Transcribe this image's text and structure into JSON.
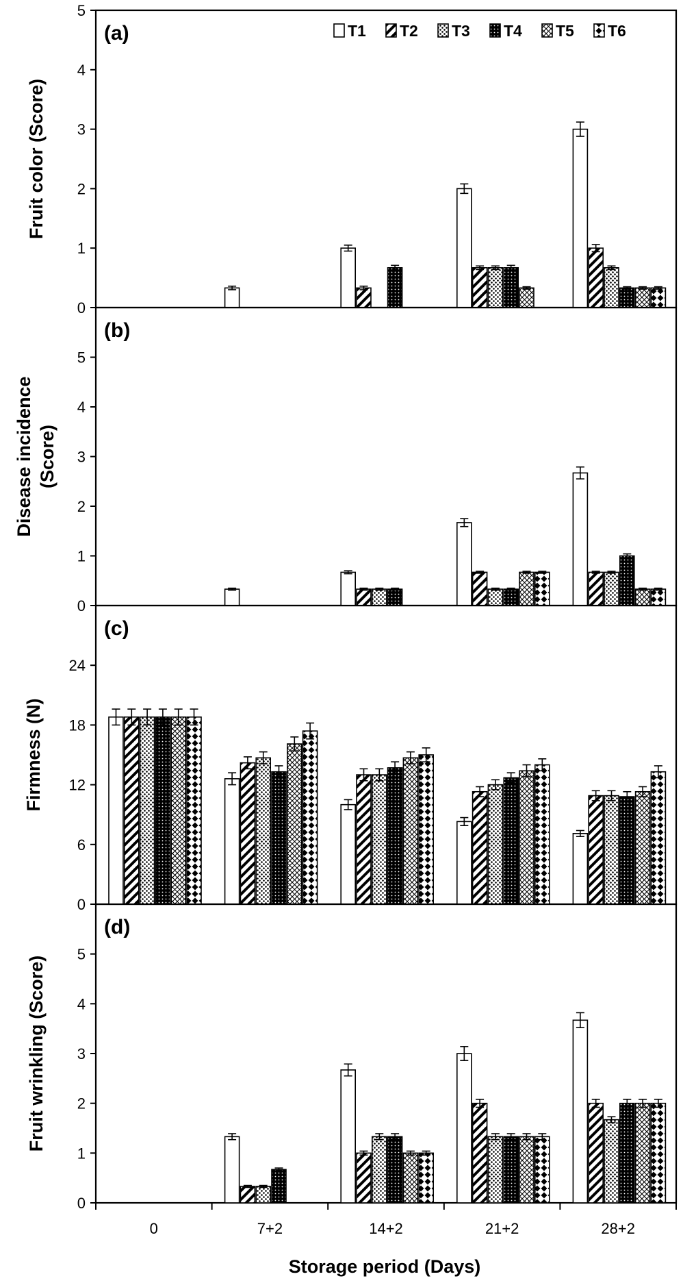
{
  "chart_data": [
    {
      "type": "bar",
      "panel_label": "(a)",
      "ylabel": "Fruit  color (Score)",
      "ylim": [
        0,
        5
      ],
      "yticks": [
        "0",
        "1",
        "2",
        "3",
        "4",
        "5"
      ],
      "categories": [
        "0",
        "7+2",
        "14+2",
        "21+2",
        "28+2"
      ],
      "legend": [
        "T1",
        "T2",
        "T3",
        "T4",
        "T5",
        "T6"
      ],
      "series": [
        {
          "name": "T1",
          "values": [
            0,
            0.33,
            1.0,
            2.0,
            3.0
          ],
          "errors": [
            0,
            0.03,
            0.05,
            0.08,
            0.12
          ]
        },
        {
          "name": "T2",
          "values": [
            0,
            0,
            0.33,
            0.67,
            1.0
          ],
          "errors": [
            0,
            0,
            0.03,
            0.03,
            0.06
          ]
        },
        {
          "name": "T3",
          "values": [
            0,
            0,
            0,
            0.67,
            0.67
          ],
          "errors": [
            0,
            0,
            0,
            0.03,
            0.03
          ]
        },
        {
          "name": "T4",
          "values": [
            0,
            0,
            0.67,
            0.67,
            0.33
          ],
          "errors": [
            0,
            0,
            0.04,
            0.04,
            0.02
          ]
        },
        {
          "name": "T5",
          "values": [
            0,
            0,
            0,
            0.33,
            0.33
          ],
          "errors": [
            0,
            0,
            0,
            0.02,
            0.02
          ]
        },
        {
          "name": "T6",
          "values": [
            0,
            0,
            0,
            0,
            0.33
          ],
          "errors": [
            0,
            0,
            0,
            0,
            0.02
          ]
        }
      ]
    },
    {
      "type": "bar",
      "panel_label": "(b)",
      "ylabel": "Disease incidence (Score)",
      "ylim": [
        0,
        6
      ],
      "yticks": [
        "0",
        "1",
        "2",
        "3",
        "4",
        "5"
      ],
      "categories": [
        "0",
        "7+2",
        "14+2",
        "21+2",
        "28+2"
      ],
      "series": [
        {
          "name": "T1",
          "values": [
            0,
            0.33,
            0.67,
            1.67,
            2.67
          ],
          "errors": [
            0,
            0.02,
            0.03,
            0.08,
            0.12
          ]
        },
        {
          "name": "T2",
          "values": [
            0,
            0,
            0.33,
            0.67,
            0.67
          ],
          "errors": [
            0,
            0,
            0.02,
            0.02,
            0.02
          ]
        },
        {
          "name": "T3",
          "values": [
            0,
            0,
            0.33,
            0.33,
            0.67
          ],
          "errors": [
            0,
            0,
            0.02,
            0.02,
            0.02
          ]
        },
        {
          "name": "T4",
          "values": [
            0,
            0,
            0.33,
            0.33,
            1.0
          ],
          "errors": [
            0,
            0,
            0.02,
            0.02,
            0.04
          ]
        },
        {
          "name": "T5",
          "values": [
            0,
            0,
            0,
            0.67,
            0.33
          ],
          "errors": [
            0,
            0,
            0,
            0.02,
            0.02
          ]
        },
        {
          "name": "T6",
          "values": [
            0,
            0,
            0,
            0.67,
            0.33
          ],
          "errors": [
            0,
            0,
            0,
            0.02,
            0.02
          ]
        }
      ]
    },
    {
      "type": "bar",
      "panel_label": "(c)",
      "ylabel": "Firmness (N)",
      "ylim": [
        0,
        30
      ],
      "yticks": [
        "0",
        "6",
        "12",
        "18",
        "24"
      ],
      "categories": [
        "0",
        "7+2",
        "14+2",
        "21+2",
        "28+2"
      ],
      "series": [
        {
          "name": "T1",
          "values": [
            18.8,
            12.6,
            10.0,
            8.3,
            7.1
          ],
          "errors": [
            0.8,
            0.6,
            0.5,
            0.4,
            0.3
          ]
        },
        {
          "name": "T2",
          "values": [
            18.8,
            14.2,
            13.0,
            11.3,
            10.9
          ],
          "errors": [
            0.8,
            0.6,
            0.6,
            0.5,
            0.5
          ]
        },
        {
          "name": "T3",
          "values": [
            18.8,
            14.7,
            13.0,
            12.0,
            10.9
          ],
          "errors": [
            0.8,
            0.6,
            0.6,
            0.5,
            0.5
          ]
        },
        {
          "name": "T4",
          "values": [
            18.8,
            13.3,
            13.7,
            12.7,
            10.8
          ],
          "errors": [
            0.8,
            0.6,
            0.6,
            0.5,
            0.5
          ]
        },
        {
          "name": "T5",
          "values": [
            18.8,
            16.1,
            14.7,
            13.4,
            11.3
          ],
          "errors": [
            0.8,
            0.7,
            0.6,
            0.6,
            0.5
          ]
        },
        {
          "name": "T6",
          "values": [
            18.8,
            17.4,
            15.0,
            14.0,
            13.3
          ],
          "errors": [
            0.8,
            0.8,
            0.7,
            0.6,
            0.6
          ]
        }
      ]
    },
    {
      "type": "bar",
      "panel_label": "(d)",
      "ylabel": "Fruit wrinkling (Score)",
      "xlabel": "Storage period (Days)",
      "ylim": [
        0,
        6
      ],
      "yticks": [
        "0",
        "1",
        "2",
        "3",
        "4",
        "5"
      ],
      "categories": [
        "0",
        "7+2",
        "14+2",
        "21+2",
        "28+2"
      ],
      "series": [
        {
          "name": "T1",
          "values": [
            0,
            1.33,
            2.67,
            3.0,
            3.67
          ],
          "errors": [
            0,
            0.06,
            0.12,
            0.14,
            0.15
          ]
        },
        {
          "name": "T2",
          "values": [
            0,
            0.33,
            1.0,
            2.0,
            2.0
          ],
          "errors": [
            0,
            0.02,
            0.04,
            0.08,
            0.08
          ]
        },
        {
          "name": "T3",
          "values": [
            0,
            0.33,
            1.33,
            1.33,
            1.67
          ],
          "errors": [
            0,
            0.02,
            0.06,
            0.06,
            0.06
          ]
        },
        {
          "name": "T4",
          "values": [
            0,
            0.67,
            1.33,
            1.33,
            2.0
          ],
          "errors": [
            0,
            0.03,
            0.06,
            0.06,
            0.08
          ]
        },
        {
          "name": "T5",
          "values": [
            0,
            0,
            1.0,
            1.33,
            2.0
          ],
          "errors": [
            0,
            0,
            0.04,
            0.06,
            0.08
          ]
        },
        {
          "name": "T6",
          "values": [
            0,
            0,
            1.0,
            1.33,
            2.0
          ],
          "errors": [
            0,
            0,
            0.04,
            0.06,
            0.08
          ]
        }
      ]
    }
  ]
}
